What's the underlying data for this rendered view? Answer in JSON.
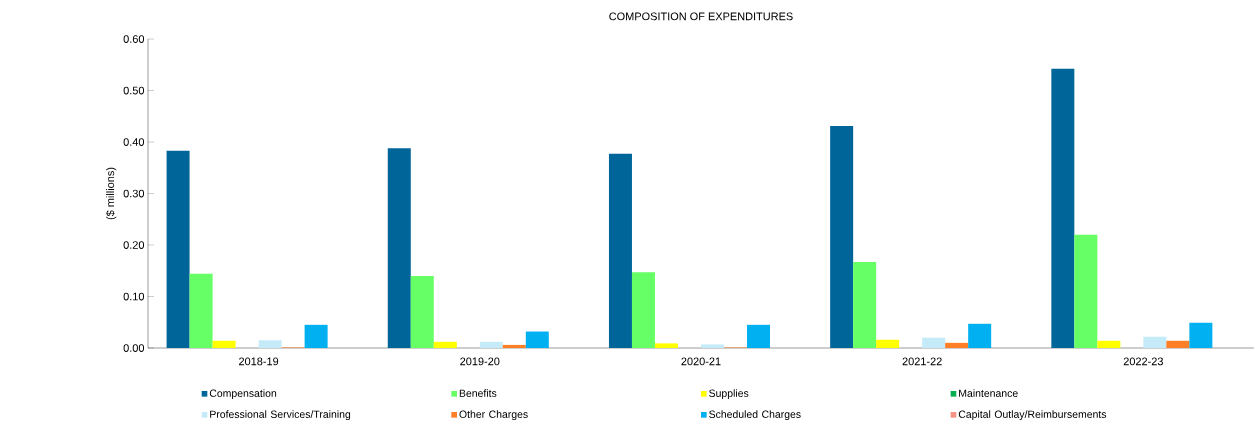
{
  "chart_data": {
    "type": "bar",
    "title": "COMPOSITION OF EXPENDITURES",
    "ylabel": "($ millions)",
    "categories": [
      "2018-19",
      "2019-20",
      "2020-21",
      "2021-22",
      "2022-23"
    ],
    "series": [
      {
        "name": "Compensation",
        "color": "#006699",
        "values": [
          0.383,
          0.388,
          0.377,
          0.431,
          0.542
        ]
      },
      {
        "name": "Benefits",
        "color": "#66ff66",
        "values": [
          0.144,
          0.14,
          0.147,
          0.167,
          0.22
        ]
      },
      {
        "name": "Supplies",
        "color": "#ffff00",
        "values": [
          0.014,
          0.012,
          0.009,
          0.016,
          0.014
        ]
      },
      {
        "name": "Maintenance",
        "color": "#00b050",
        "values": [
          0,
          0,
          0,
          0,
          0
        ]
      },
      {
        "name": "Professional Services/Training",
        "color": "#c5ebf9",
        "values": [
          0.015,
          0.012,
          0.007,
          0.02,
          0.022
        ]
      },
      {
        "name": "Other Charges",
        "color": "#ff7f27",
        "values": [
          0.001,
          0.006,
          0.001,
          0.01,
          0.014
        ]
      },
      {
        "name": "Scheduled Charges",
        "color": "#00b0f0",
        "values": [
          0.045,
          0.032,
          0.045,
          0.047,
          0.049
        ]
      },
      {
        "name": "Capital Outlay/Reimbursements",
        "color": "#f79385",
        "values": [
          0,
          0,
          0,
          0,
          0
        ]
      }
    ],
    "ylim": [
      0,
      0.6
    ],
    "yticks": [
      {
        "value": 0,
        "label": "0.00"
      },
      {
        "value": 0.1,
        "label": "0.10"
      },
      {
        "value": 0.2,
        "label": "0.20"
      },
      {
        "value": 0.3,
        "label": "0.30"
      },
      {
        "value": 0.4,
        "label": "0.40"
      },
      {
        "value": 0.5,
        "label": "0.50"
      },
      {
        "value": 0.6,
        "label": "0.60"
      }
    ],
    "grid": false,
    "legend": "bottom"
  }
}
